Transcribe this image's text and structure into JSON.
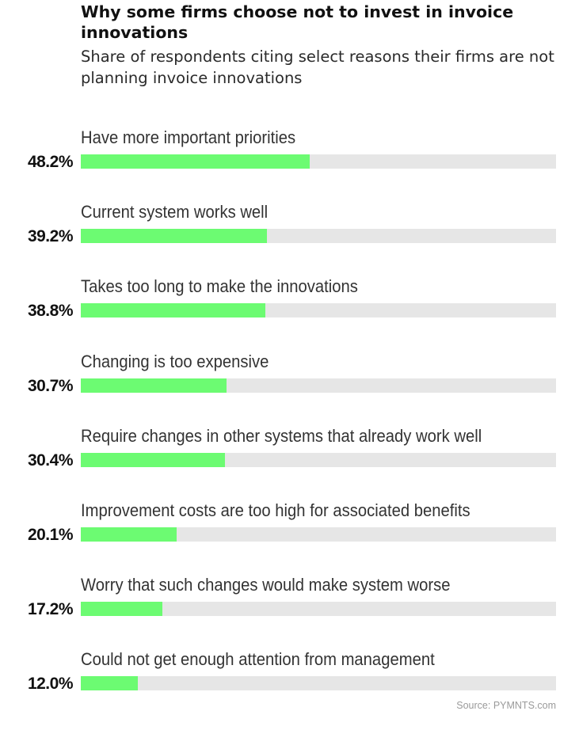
{
  "chart_data": {
    "type": "bar",
    "orientation": "horizontal",
    "title": "Why some firms choose not to invest in invoice innovations",
    "subtitle": "Share of respondents citing select reasons their firms are not planning invoice innovations",
    "categories": [
      "Have more important priorities",
      "Current system works well",
      "Takes too long to make the innovations",
      "Changing is too expensive",
      "Require changes in other systems that already work well",
      "Improvement costs are too high for associated benefits",
      "Worry that such changes would make system worse",
      "Could not get enough attention from management"
    ],
    "values": [
      48.2,
      39.2,
      38.8,
      30.7,
      30.4,
      20.1,
      17.2,
      12.0
    ],
    "value_labels": [
      "48.2%",
      "39.2%",
      "38.8%",
      "30.7%",
      "30.4%",
      "20.1%",
      "17.2%",
      "12.0%"
    ],
    "xlim": [
      0,
      100
    ],
    "bar_color": "#6cfb72",
    "track_color": "#e6e6e6",
    "grid": false,
    "source": "Source: PYMNTS.com"
  }
}
